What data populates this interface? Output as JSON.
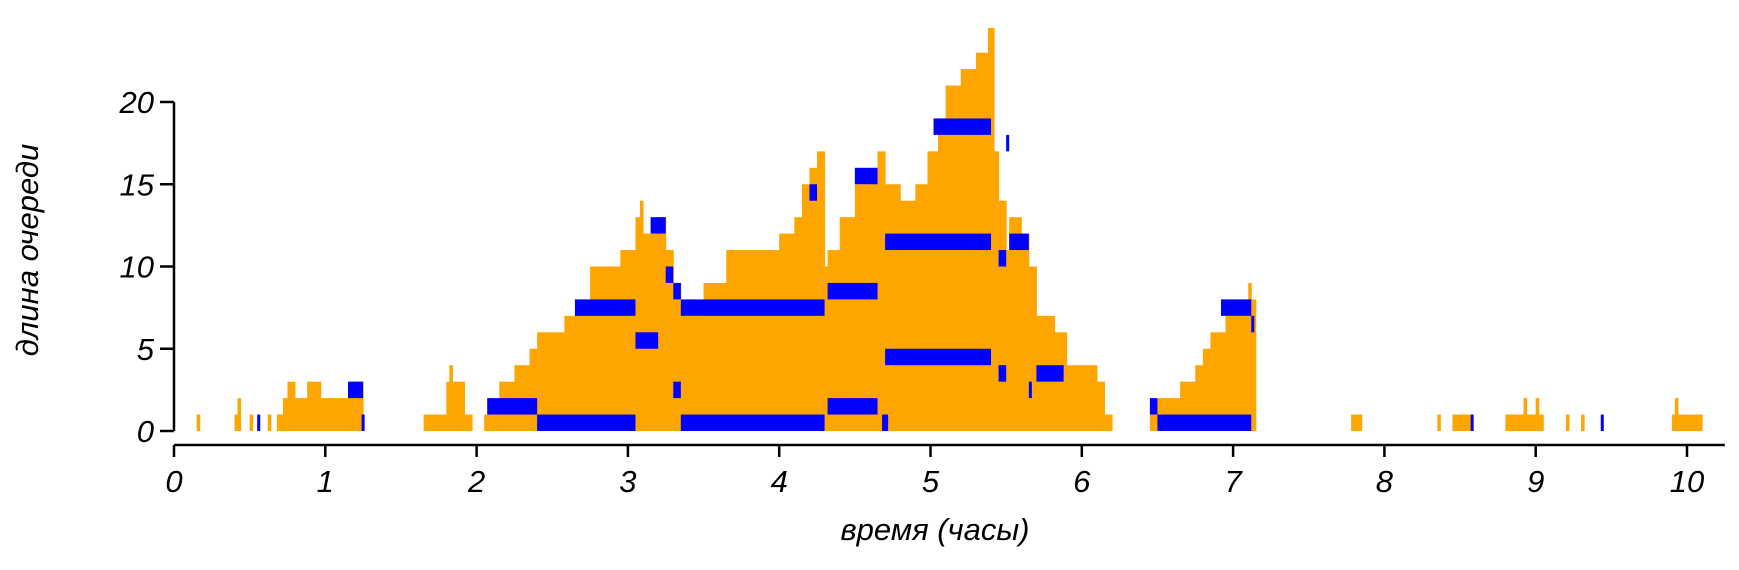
{
  "chart_data": {
    "type": "step-area",
    "x_label": "время (часы)",
    "y_label": "длина очереди",
    "xlim": [
      0,
      10.25
    ],
    "ylim": [
      0,
      20
    ],
    "xticks": [
      0,
      1,
      2,
      3,
      4,
      5,
      6,
      7,
      8,
      9,
      10
    ],
    "yticks": [
      0,
      5,
      10,
      15,
      20
    ],
    "color": "#ffa500",
    "x": [
      0,
      0.15,
      0.17,
      0.4,
      0.42,
      0.44,
      0.5,
      0.52,
      0.62,
      0.64,
      0.68,
      0.72,
      0.75,
      0.8,
      0.88,
      0.97,
      1.15,
      1.25,
      1.65,
      1.8,
      1.82,
      1.84,
      1.92,
      1.97,
      2.05,
      2.15,
      2.25,
      2.35,
      2.4,
      2.58,
      2.65,
      2.75,
      2.95,
      3.05,
      3.08,
      3.1,
      3.2,
      3.25,
      3.3,
      3.35,
      3.5,
      3.65,
      4.0,
      4.1,
      4.15,
      4.2,
      4.25,
      4.3,
      4.32,
      4.4,
      4.5,
      4.6,
      4.65,
      4.7,
      4.8,
      4.9,
      4.98,
      5.05,
      5.1,
      5.2,
      5.3,
      5.38,
      5.42,
      5.45,
      5.5,
      5.52,
      5.6,
      5.65,
      5.7,
      5.82,
      5.9,
      6.1,
      6.15,
      6.2,
      6.45,
      6.5,
      6.65,
      6.75,
      6.8,
      6.85,
      6.95,
      7.1,
      7.12,
      7.15,
      7.78,
      7.85,
      8.35,
      8.37,
      8.45,
      8.57,
      8.8,
      8.92,
      8.94,
      9.0,
      9.02,
      9.05,
      9.2,
      9.22,
      9.3,
      9.32,
      9.9,
      9.92,
      9.94,
      10.1
    ],
    "values": [
      0,
      1,
      0,
      1,
      2,
      0,
      1,
      0,
      1,
      0,
      1,
      2,
      3,
      2,
      3,
      2,
      3,
      0,
      1,
      3,
      4,
      3,
      1,
      0,
      1,
      3,
      4,
      5,
      6,
      7,
      8,
      10,
      11,
      13,
      14,
      12,
      13,
      11,
      9,
      7,
      9,
      11,
      12,
      13,
      15,
      16,
      17,
      10,
      11,
      13,
      15,
      16,
      17,
      15,
      14,
      15,
      17,
      19,
      21,
      22,
      23,
      24.5,
      17,
      14,
      11,
      13,
      12,
      10,
      7,
      6,
      4,
      3,
      1,
      0,
      1,
      2,
      3,
      4,
      5,
      6,
      7,
      9,
      8,
      0,
      1,
      0,
      1,
      0,
      1,
      0,
      1,
      2,
      1,
      2,
      1,
      0,
      1,
      0,
      1,
      0,
      1,
      2,
      1,
      0
    ],
    "bands": {
      "color": "#0000ff",
      "segments": [
        [
          0.55,
          0.57,
          0
        ],
        [
          1.15,
          1.25,
          2
        ],
        [
          1.24,
          1.26,
          0
        ],
        [
          2.07,
          2.4,
          1
        ],
        [
          2.4,
          3.05,
          0
        ],
        [
          2.65,
          3.05,
          7
        ],
        [
          3.05,
          3.2,
          5
        ],
        [
          3.15,
          3.25,
          12
        ],
        [
          3.25,
          3.3,
          9
        ],
        [
          3.3,
          3.35,
          8
        ],
        [
          3.35,
          4.3,
          7
        ],
        [
          3.35,
          4.3,
          0
        ],
        [
          3.3,
          3.35,
          2
        ],
        [
          4.2,
          4.25,
          14
        ],
        [
          4.32,
          4.65,
          1
        ],
        [
          4.32,
          4.65,
          8
        ],
        [
          4.5,
          4.65,
          15
        ],
        [
          4.68,
          4.72,
          0
        ],
        [
          4.7,
          5.4,
          11
        ],
        [
          4.7,
          5.4,
          4
        ],
        [
          5.02,
          5.4,
          18
        ],
        [
          5.45,
          5.5,
          3
        ],
        [
          5.45,
          5.5,
          10
        ],
        [
          5.5,
          5.52,
          17
        ],
        [
          5.52,
          5.65,
          11
        ],
        [
          5.65,
          5.67,
          2
        ],
        [
          5.7,
          5.88,
          3
        ],
        [
          6.45,
          6.5,
          1
        ],
        [
          6.5,
          7.12,
          0
        ],
        [
          6.92,
          7.12,
          7
        ],
        [
          7.12,
          7.14,
          6
        ],
        [
          8.57,
          8.59,
          0
        ],
        [
          9.43,
          9.45,
          0
        ]
      ]
    }
  }
}
